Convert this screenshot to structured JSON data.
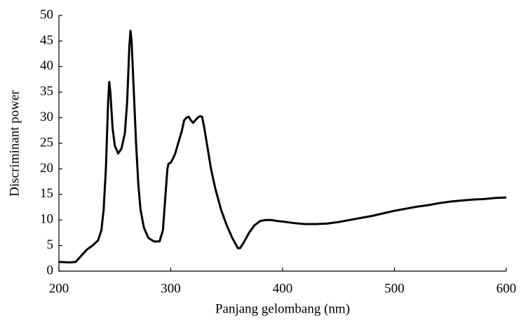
{
  "chart_data": {
    "type": "line",
    "x_label": "Panjang gelombang (nm)",
    "y_label": "Discriminant power",
    "x": [
      200,
      210,
      215,
      220,
      225,
      230,
      235,
      238,
      240,
      242,
      244,
      245,
      246,
      248,
      250,
      253,
      256,
      259,
      261,
      263,
      264,
      265,
      267,
      269,
      271,
      273,
      276,
      280,
      285,
      290,
      293,
      295,
      297,
      298,
      300,
      302,
      304,
      306,
      308,
      310,
      312,
      314,
      316,
      318,
      320,
      322,
      324,
      326,
      328,
      330,
      333,
      336,
      340,
      345,
      350,
      355,
      360,
      362,
      365,
      370,
      375,
      380,
      385,
      390,
      395,
      400,
      410,
      420,
      430,
      440,
      450,
      460,
      470,
      480,
      490,
      500,
      510,
      520,
      530,
      540,
      550,
      560,
      570,
      580,
      590,
      600
    ],
    "series": [
      {
        "color": "#000000",
        "values": [
          1.8,
          1.7,
          1.8,
          3.0,
          4.2,
          5.0,
          6.0,
          8,
          12,
          20,
          33,
          37,
          35,
          28,
          24.5,
          23,
          24,
          27,
          33,
          44,
          47,
          45,
          35,
          25,
          17,
          12,
          8.5,
          6.5,
          5.8,
          5.8,
          8,
          14,
          20,
          21,
          21.2,
          22,
          23,
          24.5,
          26,
          27.5,
          29.5,
          30,
          30.2,
          29.5,
          29,
          29.5,
          30,
          30.3,
          30.2,
          28,
          24,
          20,
          16,
          12,
          9,
          6.5,
          4.5,
          4.5,
          5.5,
          7.5,
          9,
          9.8,
          10,
          10,
          9.8,
          9.7,
          9.4,
          9.2,
          9.2,
          9.3,
          9.6,
          10,
          10.4,
          10.8,
          11.3,
          11.8,
          12.2,
          12.6,
          12.9,
          13.3,
          13.6,
          13.8,
          14,
          14.1,
          14.3,
          14.4
        ]
      }
    ],
    "xlim": [
      200,
      600
    ],
    "xticks": [
      200,
      300,
      400,
      500,
      600
    ],
    "ylim": [
      0,
      50
    ],
    "yticks": [
      0,
      5,
      10,
      15,
      20,
      25,
      30,
      35,
      40,
      45,
      50
    ],
    "grid": false
  }
}
